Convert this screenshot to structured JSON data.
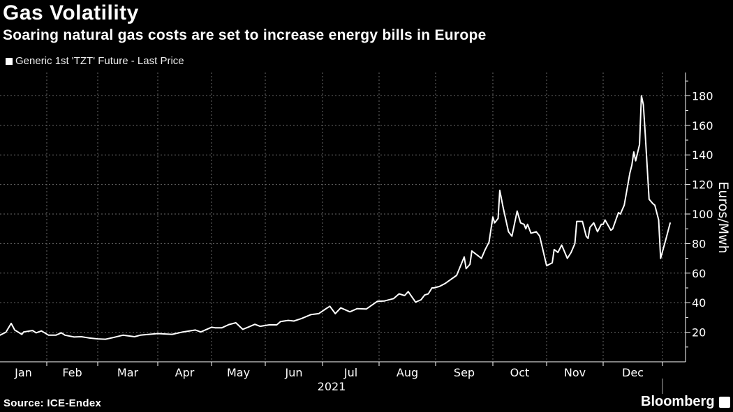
{
  "header": {
    "title": "Gas Volatility",
    "subtitle": "Soaring natural gas costs are set to increase energy bills in Europe"
  },
  "footer": {
    "source": "Source: ICE-Endex",
    "brand": "Bloomberg"
  },
  "chart_data": {
    "type": "line",
    "title": "Gas Volatility",
    "subtitle": "Soaring natural gas costs are set to increase energy bills in Europe",
    "xlabel": "2021",
    "ylabel": "Euros/Mwh",
    "ylim": [
      0,
      196
    ],
    "yticks": [
      20,
      40,
      60,
      80,
      100,
      120,
      140,
      160,
      180
    ],
    "ytick_labels": [
      "20",
      "40",
      "60",
      "80",
      "100",
      "120",
      "140",
      "160",
      "180"
    ],
    "xtick_labels": [
      "Jan",
      "Feb",
      "Mar",
      "Apr",
      "May",
      "Jun",
      "Jul",
      "Aug",
      "Sep",
      "Oct",
      "Nov",
      "Dec"
    ],
    "year_label": "2021",
    "grid": true,
    "legend_position": "top-left",
    "series": [
      {
        "name": "Generic 1st 'TZT' Future - Last Price",
        "color": "#ffffff",
        "points": [
          [
            "2021-01-05",
            17.6
          ],
          [
            "2021-01-09",
            20
          ],
          [
            "2021-01-12",
            26
          ],
          [
            "2021-01-14",
            21.5
          ],
          [
            "2021-01-18",
            18.6
          ],
          [
            "2021-01-19",
            20.2
          ],
          [
            "2021-01-24",
            21.2
          ],
          [
            "2021-01-26",
            19.6
          ],
          [
            "2021-01-29",
            20.9
          ],
          [
            "2021-02-02",
            18
          ],
          [
            "2021-02-06",
            18
          ],
          [
            "2021-02-09",
            19.6
          ],
          [
            "2021-02-11",
            18
          ],
          [
            "2021-02-16",
            16.8
          ],
          [
            "2021-02-20",
            17
          ],
          [
            "2021-02-24",
            16.2
          ],
          [
            "2021-03-01",
            15.5
          ],
          [
            "2021-03-05",
            15.3
          ],
          [
            "2021-03-09",
            16.4
          ],
          [
            "2021-03-14",
            18
          ],
          [
            "2021-03-20",
            17
          ],
          [
            "2021-03-23",
            18
          ],
          [
            "2021-04-01",
            19.1
          ],
          [
            "2021-04-09",
            18.6
          ],
          [
            "2021-04-15",
            20.2
          ],
          [
            "2021-04-22",
            21.5
          ],
          [
            "2021-04-25",
            20.2
          ],
          [
            "2021-05-01",
            23.4
          ],
          [
            "2021-05-03",
            23
          ],
          [
            "2021-05-07",
            23
          ],
          [
            "2021-05-11",
            25.2
          ],
          [
            "2021-05-15",
            26.4
          ],
          [
            "2021-05-19",
            22
          ],
          [
            "2021-05-22",
            23.4
          ],
          [
            "2021-05-26",
            25.4
          ],
          [
            "2021-05-29",
            24
          ],
          [
            "2021-06-03",
            25
          ],
          [
            "2021-06-07",
            25
          ],
          [
            "2021-06-09",
            27.2
          ],
          [
            "2021-06-13",
            28
          ],
          [
            "2021-06-16",
            27.6
          ],
          [
            "2021-06-20",
            29.3
          ],
          [
            "2021-06-25",
            32
          ],
          [
            "2021-06-29",
            32.6
          ],
          [
            "2021-07-03",
            36
          ],
          [
            "2021-07-05",
            37.6
          ],
          [
            "2021-07-08",
            32.6
          ],
          [
            "2021-07-11",
            36.5
          ],
          [
            "2021-07-16",
            33.8
          ],
          [
            "2021-07-20",
            36
          ],
          [
            "2021-07-25",
            35.7
          ],
          [
            "2021-07-31",
            40.9
          ],
          [
            "2021-08-04",
            41.2
          ],
          [
            "2021-08-09",
            42.8
          ],
          [
            "2021-08-12",
            46
          ],
          [
            "2021-08-15",
            44.8
          ],
          [
            "2021-08-17",
            47.5
          ],
          [
            "2021-08-21",
            40.4
          ],
          [
            "2021-08-24",
            42
          ],
          [
            "2021-08-26",
            45.2
          ],
          [
            "2021-08-28",
            46
          ],
          [
            "2021-08-30",
            50
          ],
          [
            "2021-08-31",
            50
          ],
          [
            "2021-09-03",
            51
          ],
          [
            "2021-09-06",
            53
          ],
          [
            "2021-09-12",
            58.5
          ],
          [
            "2021-09-16",
            71
          ],
          [
            "2021-09-17",
            63
          ],
          [
            "2021-09-19",
            66
          ],
          [
            "2021-09-20",
            75
          ],
          [
            "2021-09-25",
            70
          ],
          [
            "2021-09-27",
            76
          ],
          [
            "2021-09-29",
            81
          ],
          [
            "2021-10-01",
            98
          ],
          [
            "2021-10-02",
            94
          ],
          [
            "2021-10-04",
            97
          ],
          [
            "2021-10-05",
            116
          ],
          [
            "2021-10-07",
            104
          ],
          [
            "2021-10-10",
            88
          ],
          [
            "2021-10-12",
            85
          ],
          [
            "2021-10-15",
            102
          ],
          [
            "2021-10-17",
            94
          ],
          [
            "2021-10-19",
            93
          ],
          [
            "2021-10-20",
            90
          ],
          [
            "2021-10-21",
            93
          ],
          [
            "2021-10-23",
            87
          ],
          [
            "2021-10-26",
            88
          ],
          [
            "2021-10-28",
            85
          ],
          [
            "2021-11-01",
            65
          ],
          [
            "2021-11-04",
            67
          ],
          [
            "2021-11-05",
            76
          ],
          [
            "2021-11-07",
            74
          ],
          [
            "2021-11-09",
            79
          ],
          [
            "2021-11-12",
            70
          ],
          [
            "2021-11-14",
            74
          ],
          [
            "2021-11-16",
            80
          ],
          [
            "2021-11-17",
            95
          ],
          [
            "2021-11-20",
            95
          ],
          [
            "2021-11-22",
            85
          ],
          [
            "2021-11-23",
            83.5
          ],
          [
            "2021-11-24",
            91
          ],
          [
            "2021-11-26",
            94
          ],
          [
            "2021-11-28",
            88
          ],
          [
            "2021-11-30",
            93
          ],
          [
            "2021-12-01",
            93
          ],
          [
            "2021-12-02",
            96
          ],
          [
            "2021-12-05",
            89
          ],
          [
            "2021-12-06",
            90
          ],
          [
            "2021-12-09",
            101
          ],
          [
            "2021-12-10",
            100
          ],
          [
            "2021-12-12",
            106
          ],
          [
            "2021-12-15",
            128
          ],
          [
            "2021-12-16",
            133
          ],
          [
            "2021-12-17",
            142
          ],
          [
            "2021-12-18",
            136
          ],
          [
            "2021-12-20",
            147
          ],
          [
            "2021-12-21",
            180
          ],
          [
            "2021-12-22",
            174
          ],
          [
            "2021-12-23",
            154
          ],
          [
            "2021-12-25",
            110
          ],
          [
            "2021-12-27",
            107
          ],
          [
            "2021-12-28",
            106
          ],
          [
            "2021-12-30",
            96
          ],
          [
            "2021-12-31",
            70
          ],
          [
            "2022-01-03",
            84
          ],
          [
            "2022-01-05",
            94
          ]
        ]
      }
    ]
  }
}
